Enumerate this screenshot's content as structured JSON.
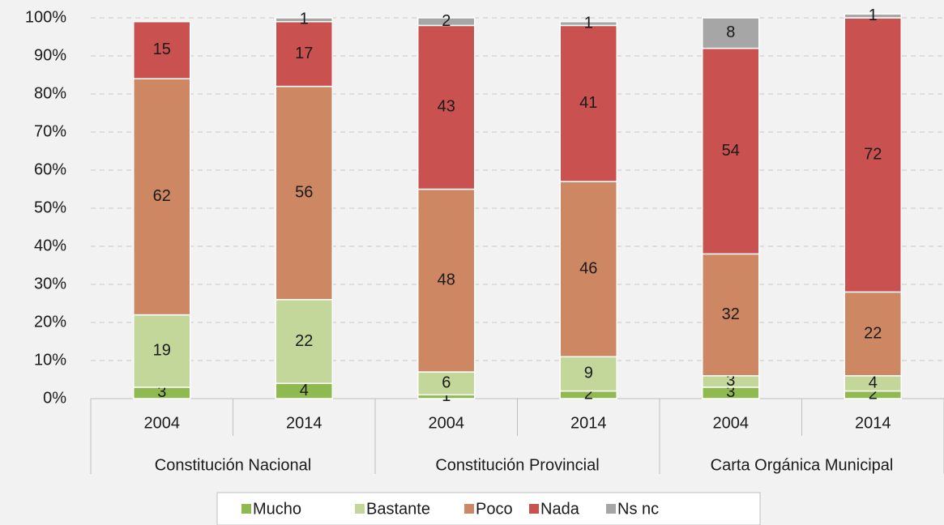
{
  "chart_data": {
    "type": "stacked_bar",
    "categories": [
      "2004",
      "2014",
      "2004",
      "2014",
      "2004",
      "2014"
    ],
    "groups": [
      "Constitución Nacional",
      "Constitución Provincial",
      "Carta Orgánica Municipal"
    ],
    "series": [
      {
        "name": "Mucho",
        "color": "#8fba50",
        "values": [
          3,
          4,
          1,
          2,
          3,
          2
        ]
      },
      {
        "name": "Bastante",
        "color": "#c3d79b",
        "values": [
          19,
          22,
          6,
          9,
          3,
          4
        ]
      },
      {
        "name": "Poco",
        "color": "#cd8763",
        "values": [
          62,
          56,
          48,
          46,
          32,
          22
        ]
      },
      {
        "name": "Nada",
        "color": "#c9514f",
        "values": [
          15,
          17,
          43,
          41,
          54,
          72
        ]
      },
      {
        "name": "Ns nc",
        "color": "#a6a6a6",
        "values": [
          null,
          1,
          2,
          1,
          8,
          1
        ]
      }
    ],
    "ylim": [
      0,
      100
    ],
    "yticks": [
      {
        "value": 0,
        "label": "0%"
      },
      {
        "value": 10,
        "label": "10%"
      },
      {
        "value": 20,
        "label": "20%"
      },
      {
        "value": 30,
        "label": "30%"
      },
      {
        "value": 40,
        "label": "40%"
      },
      {
        "value": 50,
        "label": "50%"
      },
      {
        "value": 60,
        "label": "60%"
      },
      {
        "value": 70,
        "label": "70%"
      },
      {
        "value": 80,
        "label": "80%"
      },
      {
        "value": 90,
        "label": "90%"
      },
      {
        "value": 100,
        "label": "100%"
      }
    ],
    "grid": true,
    "legend": "bottom"
  }
}
